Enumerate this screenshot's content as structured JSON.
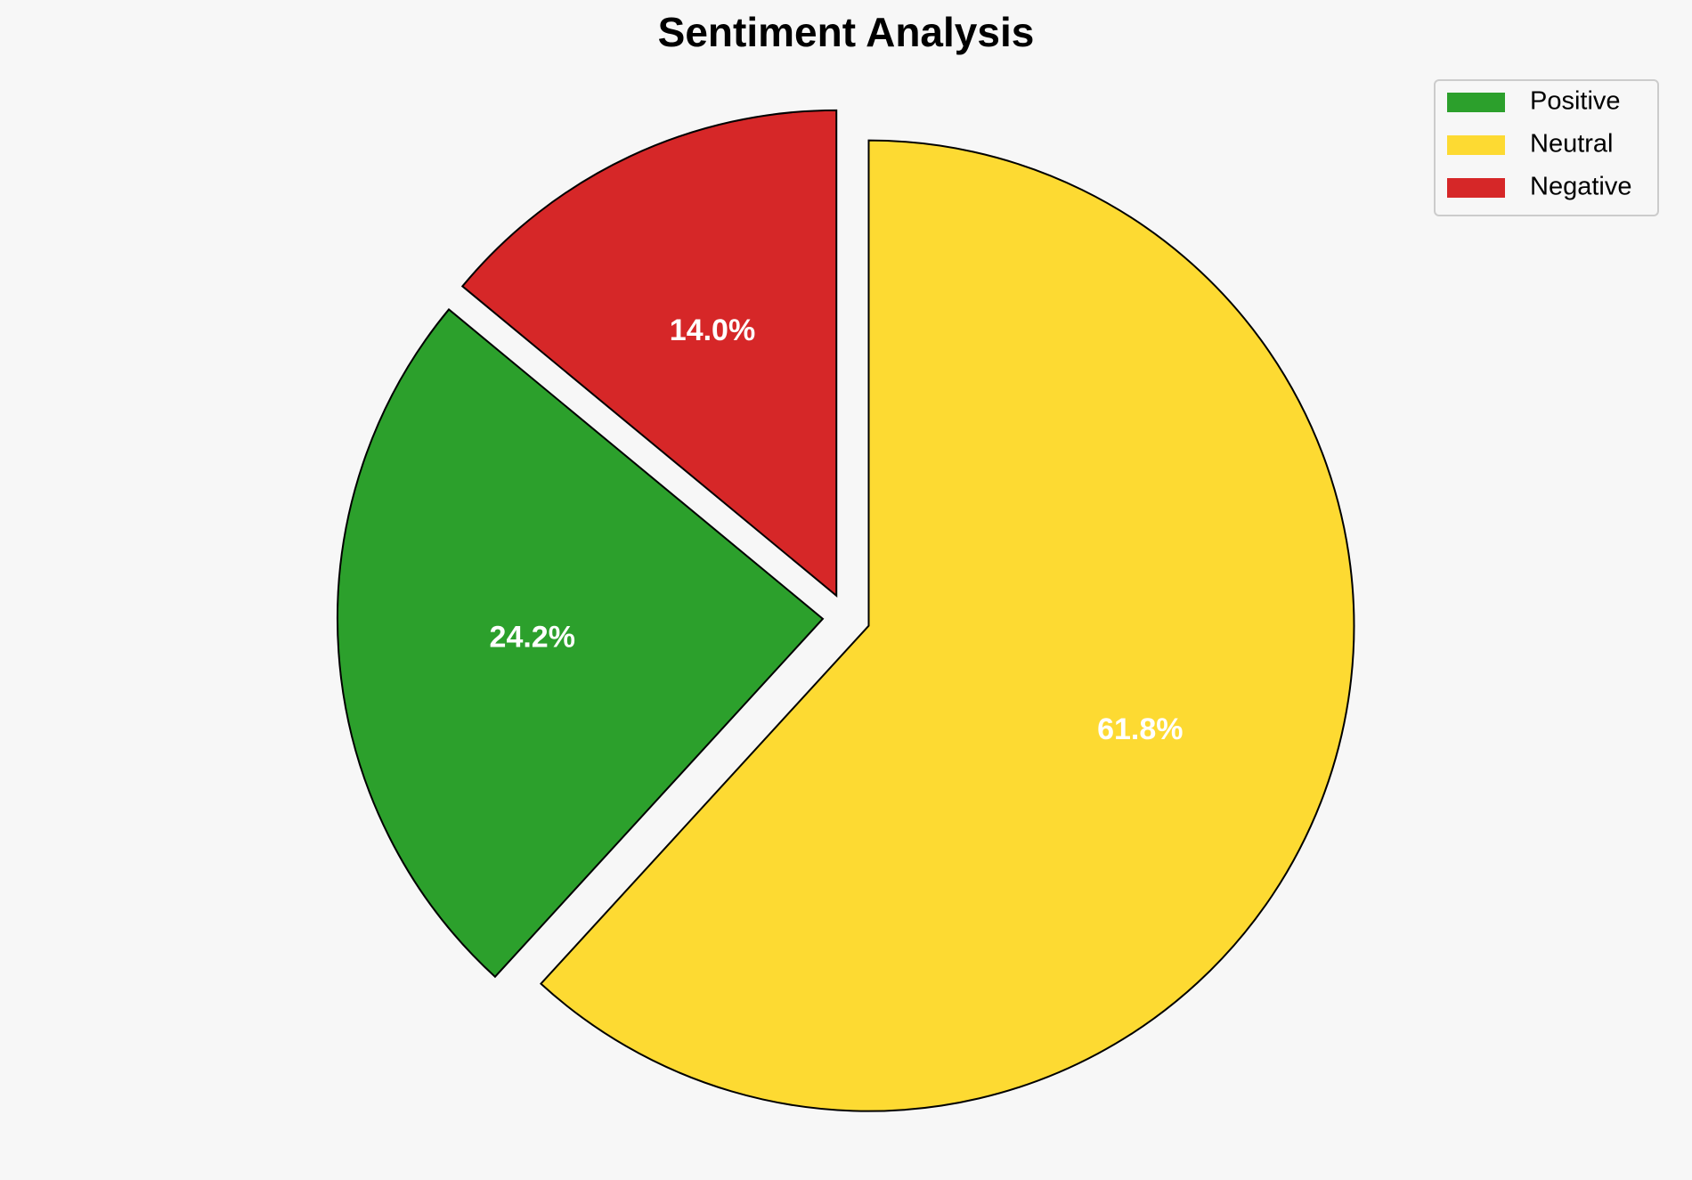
{
  "chart_data": {
    "type": "pie",
    "title": "Sentiment Analysis",
    "categories": [
      "Positive",
      "Neutral",
      "Negative"
    ],
    "values": [
      24.2,
      61.8,
      14.0
    ],
    "value_labels": [
      "24.2%",
      "61.8%",
      "14.0%"
    ],
    "colors": [
      "#2ca02c",
      "#fdda32",
      "#d62728"
    ],
    "legend": "upper right"
  }
}
